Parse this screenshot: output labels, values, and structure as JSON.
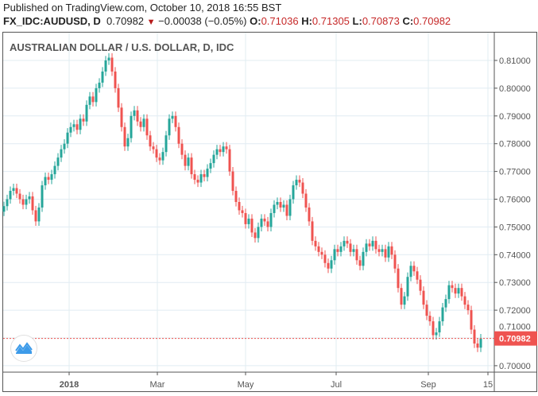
{
  "header": {
    "published": "Published on TradingView.com, October 10, 2018 16:55 BST",
    "symbol": "FX_IDC:AUDUSD, D",
    "last": "0.70982",
    "change": "−0.00038 (−0.05%)",
    "o_label": "O:",
    "o": "0.71036",
    "h_label": "H:",
    "h": "0.71305",
    "l_label": "L:",
    "l": "0.70873",
    "c_label": "C:",
    "c": "0.70982",
    "down_icon": "▼"
  },
  "colors": {
    "up": "#26a69a",
    "down": "#ef5350",
    "grid": "#e1ecf2",
    "last_price": "#ef5350"
  },
  "chart_data": {
    "type": "candlestick",
    "title": "AUSTRALIAN DOLLAR / U.S. DOLLAR, D, IDC",
    "ylim": [
      0.6975,
      0.8165
    ],
    "yticks": [
      "0.70000",
      "0.71000",
      "0.72000",
      "0.73000",
      "0.74000",
      "0.75000",
      "0.76000",
      "0.77000",
      "0.78000",
      "0.79000",
      "0.80000",
      "0.81000"
    ],
    "xticks": [
      "2018",
      "Mar",
      "May",
      "Jul",
      "Sep",
      "15"
    ],
    "last_price_label": "0.70982",
    "last_price": 0.70982,
    "closes": [
      0.7575,
      0.76,
      0.763,
      0.764,
      0.762,
      0.76,
      0.758,
      0.76,
      0.761,
      0.756,
      0.752,
      0.757,
      0.765,
      0.768,
      0.767,
      0.769,
      0.772,
      0.775,
      0.778,
      0.78,
      0.784,
      0.786,
      0.787,
      0.785,
      0.789,
      0.788,
      0.794,
      0.797,
      0.795,
      0.8,
      0.802,
      0.806,
      0.81,
      0.811,
      0.806,
      0.8,
      0.793,
      0.786,
      0.779,
      0.782,
      0.79,
      0.792,
      0.788,
      0.786,
      0.789,
      0.783,
      0.779,
      0.778,
      0.775,
      0.774,
      0.777,
      0.783,
      0.789,
      0.79,
      0.786,
      0.78,
      0.776,
      0.772,
      0.775,
      0.769,
      0.767,
      0.766,
      0.769,
      0.768,
      0.771,
      0.773,
      0.776,
      0.778,
      0.777,
      0.779,
      0.778,
      0.77,
      0.763,
      0.759,
      0.756,
      0.755,
      0.751,
      0.753,
      0.748,
      0.746,
      0.75,
      0.753,
      0.752,
      0.75,
      0.755,
      0.758,
      0.759,
      0.757,
      0.758,
      0.754,
      0.76,
      0.765,
      0.767,
      0.766,
      0.762,
      0.757,
      0.752,
      0.745,
      0.743,
      0.741,
      0.74,
      0.737,
      0.735,
      0.738,
      0.742,
      0.741,
      0.743,
      0.745,
      0.744,
      0.741,
      0.742,
      0.738,
      0.736,
      0.741,
      0.744,
      0.743,
      0.745,
      0.742,
      0.741,
      0.742,
      0.739,
      0.743,
      0.74,
      0.735,
      0.728,
      0.722,
      0.725,
      0.732,
      0.736,
      0.734,
      0.731,
      0.727,
      0.722,
      0.718,
      0.716,
      0.711,
      0.712,
      0.716,
      0.721,
      0.724,
      0.729,
      0.728,
      0.726,
      0.728,
      0.725,
      0.722,
      0.72,
      0.713,
      0.708,
      0.7065,
      0.70982
    ]
  }
}
